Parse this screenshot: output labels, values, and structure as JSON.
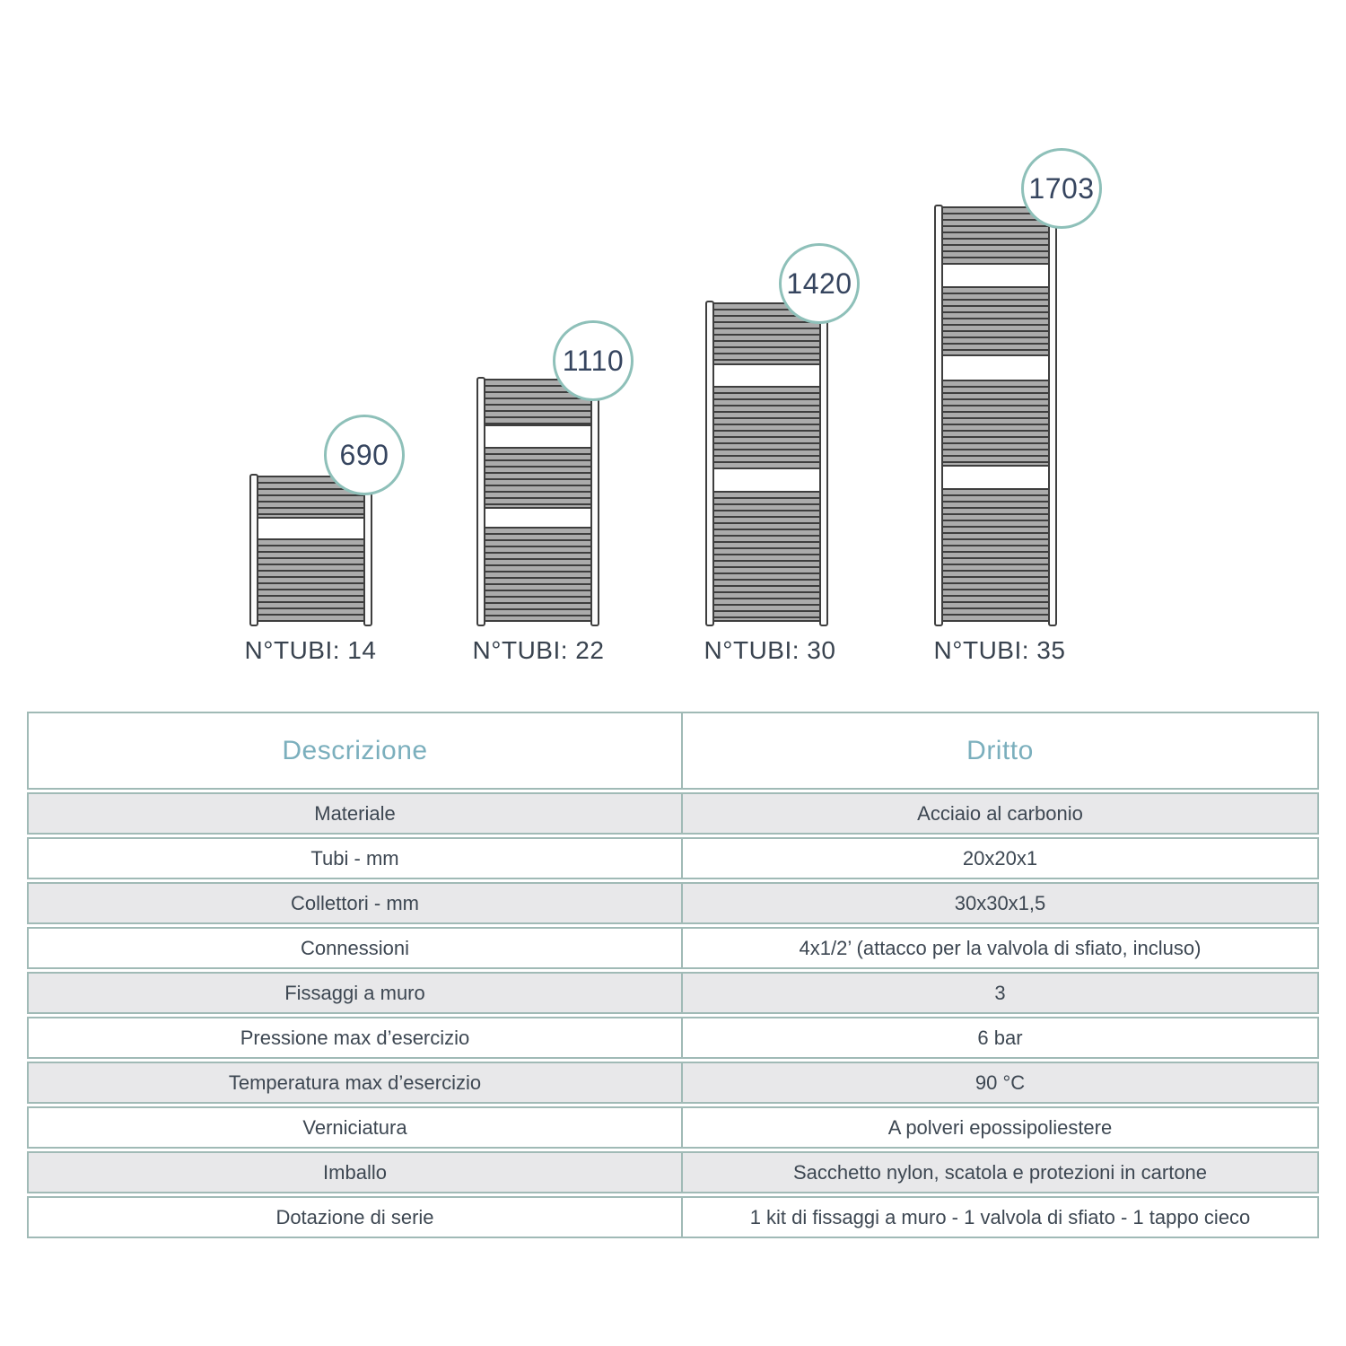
{
  "diagram": {
    "radiators": [
      {
        "height_label": "690",
        "tubes_label": "N°TUBI: 14"
      },
      {
        "height_label": "1110",
        "tubes_label": "N°TUBI: 22"
      },
      {
        "height_label": "1420",
        "tubes_label": "N°TUBI: 30"
      },
      {
        "height_label": "1703",
        "tubes_label": "N°TUBI: 35"
      }
    ]
  },
  "table": {
    "headers": {
      "description": "Descrizione",
      "model": "Dritto"
    },
    "rows": [
      {
        "label": "Materiale",
        "value": "Acciaio al carbonio"
      },
      {
        "label": "Tubi - mm",
        "value": "20x20x1"
      },
      {
        "label": "Collettori - mm",
        "value": "30x30x1,5"
      },
      {
        "label": "Connessioni",
        "value": "4x1/2’ (attacco per la valvola di sfiato, incluso)"
      },
      {
        "label": "Fissaggi a muro",
        "value": "3"
      },
      {
        "label": "Pressione max d’esercizio",
        "value": "6 bar"
      },
      {
        "label": "Temperatura max d’esercizio",
        "value": "90 °C"
      },
      {
        "label": "Verniciatura",
        "value": "A polveri epossipoliestere"
      },
      {
        "label": "Imballo",
        "value": "Sacchetto nylon, scatola e protezioni in cartone"
      },
      {
        "label": "Dotazione di serie",
        "value": "1 kit di fissaggi a muro - 1 valvola di sfiato - 1 tappo cieco"
      }
    ]
  },
  "colors": {
    "accent_teal_text": "#7bafbd",
    "badge_ring": "#8ec0b9",
    "table_border": "#a0bab6",
    "navy_text": "#36455f",
    "row_gray_bg": "#e8e8ea",
    "tube_dark": "#3e3e3e",
    "tube_gray": "#ababab"
  }
}
